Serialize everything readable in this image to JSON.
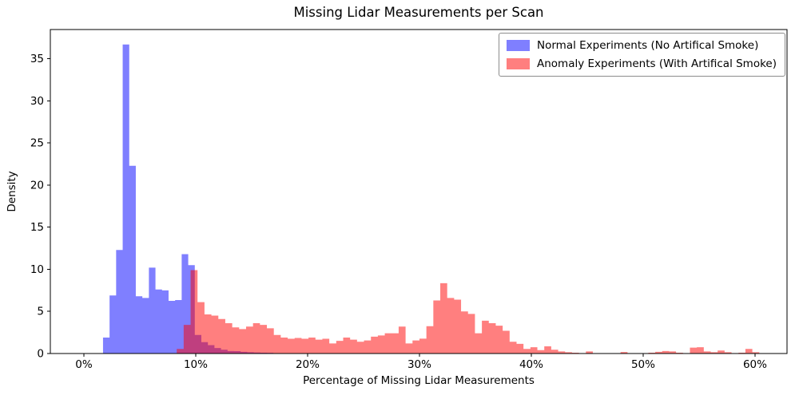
{
  "chart_data": {
    "type": "bar",
    "subtype": "overlaid-density-histogram",
    "title": "Missing Lidar Measurements per Scan",
    "xlabel": "Percentage of Missing Lidar Measurements",
    "ylabel": "Density",
    "xlim": [
      -3.0,
      62.86
    ],
    "ylim": [
      0,
      38.48
    ],
    "grid": false,
    "legend_position": "upper right",
    "x_ticks": [
      {
        "value": 0,
        "label": "0%"
      },
      {
        "value": 10,
        "label": "10%"
      },
      {
        "value": 20,
        "label": "20%"
      },
      {
        "value": 30,
        "label": "30%"
      },
      {
        "value": 40,
        "label": "40%"
      },
      {
        "value": 50,
        "label": "50%"
      },
      {
        "value": 60,
        "label": "60%"
      }
    ],
    "y_ticks": [
      {
        "value": 0,
        "label": "0"
      },
      {
        "value": 5,
        "label": "5"
      },
      {
        "value": 10,
        "label": "10"
      },
      {
        "value": 15,
        "label": "15"
      },
      {
        "value": 20,
        "label": "20"
      },
      {
        "value": 25,
        "label": "25"
      },
      {
        "value": 30,
        "label": "30"
      },
      {
        "value": 35,
        "label": "35"
      }
    ],
    "bar_alpha": 0.5,
    "series": [
      {
        "name": "Normal Experiments (No Artifical Smoke)",
        "color": "#0000ff",
        "bin_start_pct": 1.71,
        "bin_width_pct": 0.586,
        "densities": [
          1.9,
          6.9,
          12.3,
          36.7,
          22.3,
          6.8,
          6.6,
          10.2,
          7.6,
          7.5,
          6.25,
          6.35,
          11.8,
          10.5,
          2.2,
          1.35,
          1.0,
          0.65,
          0.45,
          0.3,
          0.28,
          0.2,
          0.15,
          0.12,
          0.1,
          0.08
        ]
      },
      {
        "name": "Anomaly Experiments (With Artifical Smoke)",
        "color": "#ff0000",
        "bin_start_pct": 8.3,
        "bin_width_pct": 0.62,
        "densities": [
          0.55,
          3.4,
          9.9,
          6.1,
          4.65,
          4.5,
          4.1,
          3.6,
          3.1,
          2.9,
          3.2,
          3.6,
          3.4,
          3.0,
          2.2,
          1.9,
          1.75,
          1.85,
          1.75,
          1.9,
          1.65,
          1.75,
          1.2,
          1.5,
          1.9,
          1.65,
          1.4,
          1.55,
          2.0,
          2.15,
          2.4,
          2.4,
          3.2,
          1.2,
          1.55,
          1.77,
          3.25,
          6.3,
          8.35,
          6.6,
          6.4,
          5.0,
          4.7,
          2.4,
          3.9,
          3.6,
          3.3,
          2.7,
          1.4,
          1.15,
          0.55,
          0.75,
          0.4,
          0.85,
          0.45,
          0.25,
          0.15,
          0.1,
          0.05,
          0.25,
          0.05,
          0,
          0,
          0,
          0.18,
          0,
          0,
          0,
          0.1,
          0.2,
          0.3,
          0.25,
          0.1,
          0.05,
          0.7,
          0.75,
          0.25,
          0.15,
          0.35,
          0.15,
          0.05,
          0.1,
          0.55,
          0.15
        ]
      }
    ]
  }
}
